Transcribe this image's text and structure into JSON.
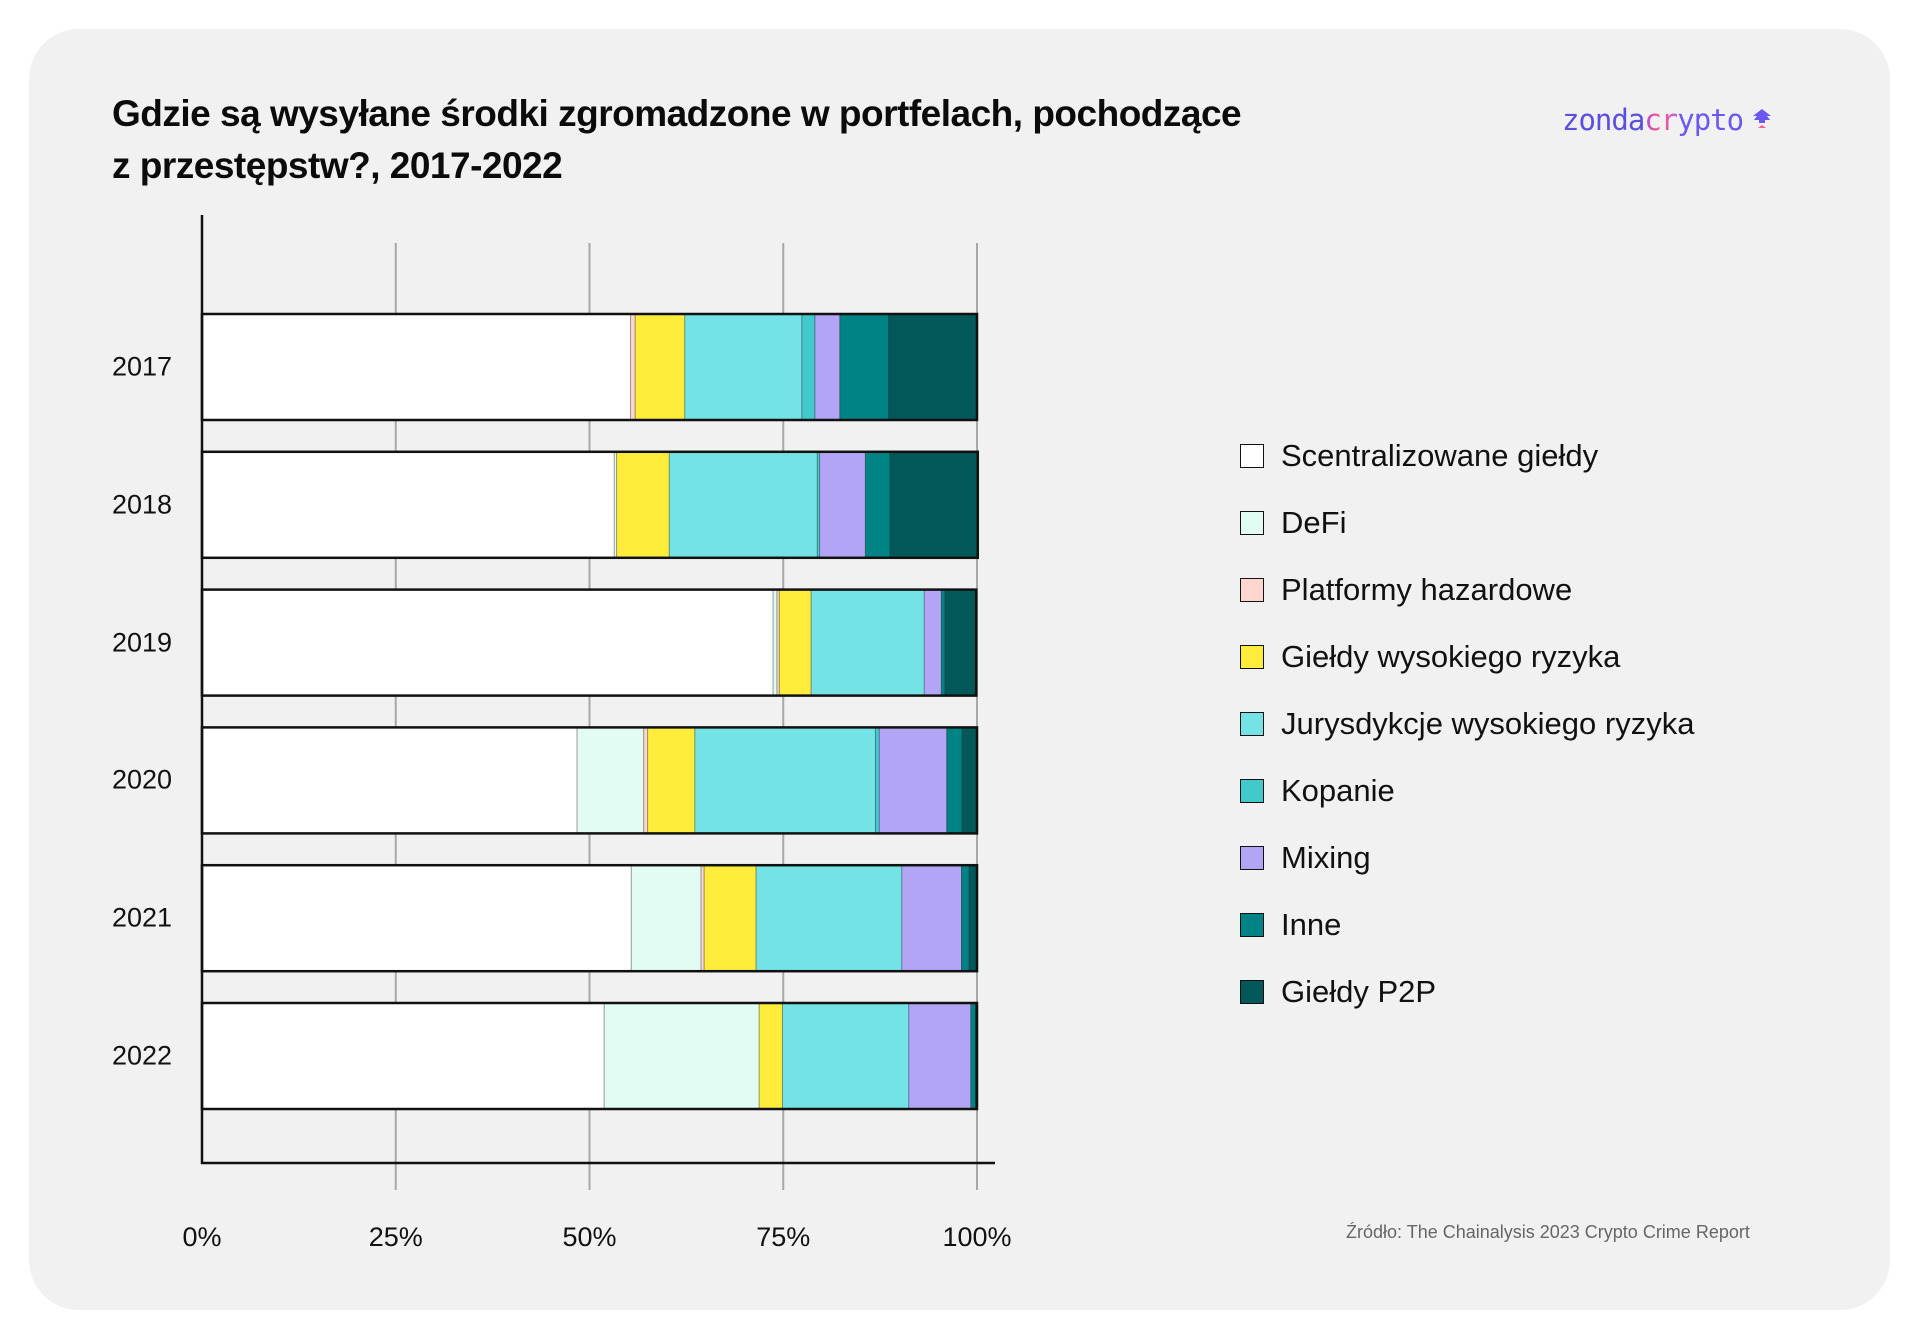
{
  "header": {
    "title_line1": "Gdzie są wysyłane środki zgromadzone w portfelach, pochodzące",
    "title_line2": "z przestępstw?, 2017-2022",
    "logo": {
      "part1": "zonda",
      "part2": "cr",
      "part3": "ypto",
      "icon": "zondacrypto-logo-icon"
    }
  },
  "source": "Źródło: The Chainalysis 2023 Crypto Crime Report",
  "chart_data": {
    "type": "bar",
    "orientation": "horizontal",
    "stacked": true,
    "title": "Gdzie są wysyłane środki zgromadzone w portfelach, pochodzące z przestępstw?, 2017-2022",
    "xlabel": "",
    "ylabel": "",
    "xlim": [
      0,
      100
    ],
    "x_ticks": [
      "0%",
      "25%",
      "50%",
      "75%",
      "100%"
    ],
    "x_tick_values": [
      0,
      25,
      50,
      75,
      100
    ],
    "grid": true,
    "legend_position": "right",
    "categories": [
      "2017",
      "2018",
      "2019",
      "2020",
      "2021",
      "2022"
    ],
    "series": [
      {
        "name": "Scentralizowane giełdy",
        "color": "#ffffff",
        "values": [
          55.3,
          53.2,
          73.7,
          48.4,
          55.4,
          51.9
        ]
      },
      {
        "name": "DeFi",
        "color": "#e2fbf3",
        "values": [
          0.0,
          0.3,
          0.5,
          8.6,
          9.0,
          20.0
        ]
      },
      {
        "name": "Platformy hazardowe",
        "color": "#fdd6cf",
        "values": [
          0.6,
          0.0,
          0.3,
          0.5,
          0.4,
          0.0
        ]
      },
      {
        "name": "Giełdy wysokiego ryzyka",
        "color": "#ffec3b",
        "values": [
          6.4,
          6.8,
          4.1,
          6.1,
          6.7,
          3.0
        ]
      },
      {
        "name": "Jurysdykcje wysokiego ryzyka",
        "color": "#74e3e5",
        "values": [
          15.1,
          19.1,
          14.6,
          23.3,
          18.8,
          16.3
        ]
      },
      {
        "name": "Kopanie",
        "color": "#42c9cb",
        "values": [
          1.7,
          0.3,
          0.0,
          0.5,
          0.0,
          0.0
        ]
      },
      {
        "name": "Mixing",
        "color": "#b3a5f5",
        "values": [
          3.2,
          5.9,
          2.2,
          8.7,
          7.7,
          8.0
        ]
      },
      {
        "name": "Inne",
        "color": "#008385",
        "values": [
          6.3,
          3.2,
          0.5,
          2.0,
          1.0,
          0.6
        ]
      },
      {
        "name": "Giełdy P2P",
        "color": "#03585a",
        "values": [
          11.4,
          11.3,
          4.0,
          1.9,
          1.0,
          0.2
        ]
      }
    ]
  }
}
